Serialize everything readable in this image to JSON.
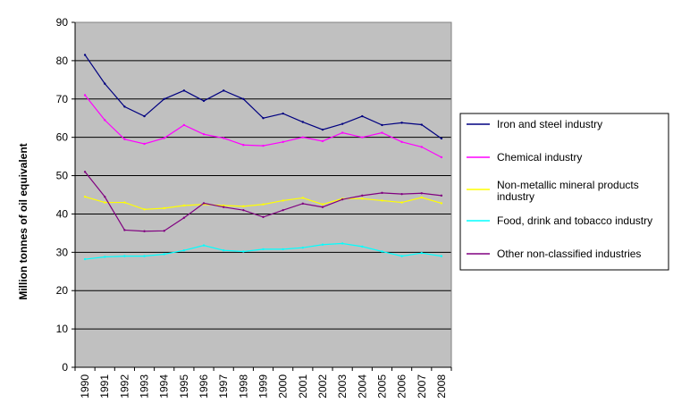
{
  "chart_data": {
    "type": "line",
    "title": "",
    "xlabel": "",
    "ylabel": "Million tonnes of oil equivalent",
    "ylim": [
      0,
      90
    ],
    "y_ticks": [
      0,
      10,
      20,
      30,
      40,
      50,
      60,
      70,
      80,
      90
    ],
    "grid": "horizontal",
    "legend_position": "right",
    "plot_background": "#c0c0c0",
    "categories": [
      "1990",
      "1991",
      "1992",
      "1993",
      "1994",
      "1995",
      "1996",
      "1997",
      "1998",
      "1999",
      "2000",
      "2001",
      "2002",
      "2003",
      "2004",
      "2005",
      "2006",
      "2007",
      "2008"
    ],
    "series": [
      {
        "name": "Iron and steel industry",
        "color": "#000080",
        "values": [
          81.5,
          74,
          68,
          65.5,
          70,
          72.2,
          69.5,
          72.2,
          70,
          65,
          66.2,
          64,
          62,
          63.5,
          65.5,
          63.2,
          63.8,
          63.3,
          59.7
        ]
      },
      {
        "name": "Chemical industry",
        "color": "#ff00ff",
        "values": [
          71,
          64.5,
          59.5,
          58.3,
          59.8,
          63.2,
          60.8,
          59.8,
          58,
          57.8,
          58.8,
          60,
          59,
          61.2,
          60,
          61.2,
          58.8,
          57.5,
          54.8
        ]
      },
      {
        "name": "Non-metallic mineral products industry",
        "color": "#ffff00",
        "values": [
          44.5,
          43,
          43,
          41.2,
          41.5,
          42.2,
          42.5,
          42.2,
          42,
          42.5,
          43.5,
          44.2,
          42.5,
          44,
          44,
          43.5,
          43,
          44.3,
          42.8
        ]
      },
      {
        "name": "Food, drink and tobacco industry",
        "color": "#00ffff",
        "values": [
          28.2,
          28.8,
          29,
          29,
          29.5,
          30.5,
          31.8,
          30.5,
          30.2,
          30.8,
          30.8,
          31.2,
          32,
          32.3,
          31.5,
          30.2,
          29,
          29.8,
          29
        ]
      },
      {
        "name": "Other non-classified industries",
        "color": "#800080",
        "values": [
          51,
          44.5,
          35.8,
          35.5,
          35.6,
          39,
          42.8,
          41.8,
          41,
          39.2,
          41,
          42.7,
          41.8,
          43.8,
          44.8,
          45.5,
          45.2,
          45.4,
          44.8
        ]
      }
    ]
  }
}
